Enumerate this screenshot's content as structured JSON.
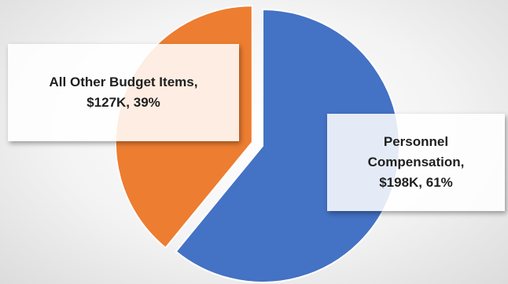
{
  "chart_data": {
    "type": "pie",
    "title": "",
    "slices": [
      {
        "name": "Personnel Compensation",
        "value_k": 198,
        "percent": 61,
        "color": "#4472C4",
        "exploded": false,
        "label_lines": [
          "Personnel",
          "Compensation,",
          "$198K, 61%"
        ]
      },
      {
        "name": "All Other Budget Items",
        "value_k": 127,
        "percent": 39,
        "color": "#ED7D31",
        "exploded": true,
        "label_lines": [
          "All Other Budget Items,",
          "$127K, 39%"
        ]
      }
    ],
    "start_angle_deg": 0,
    "direction": "clockwise",
    "slice_border_color": "#ffffff",
    "legend": "none"
  }
}
